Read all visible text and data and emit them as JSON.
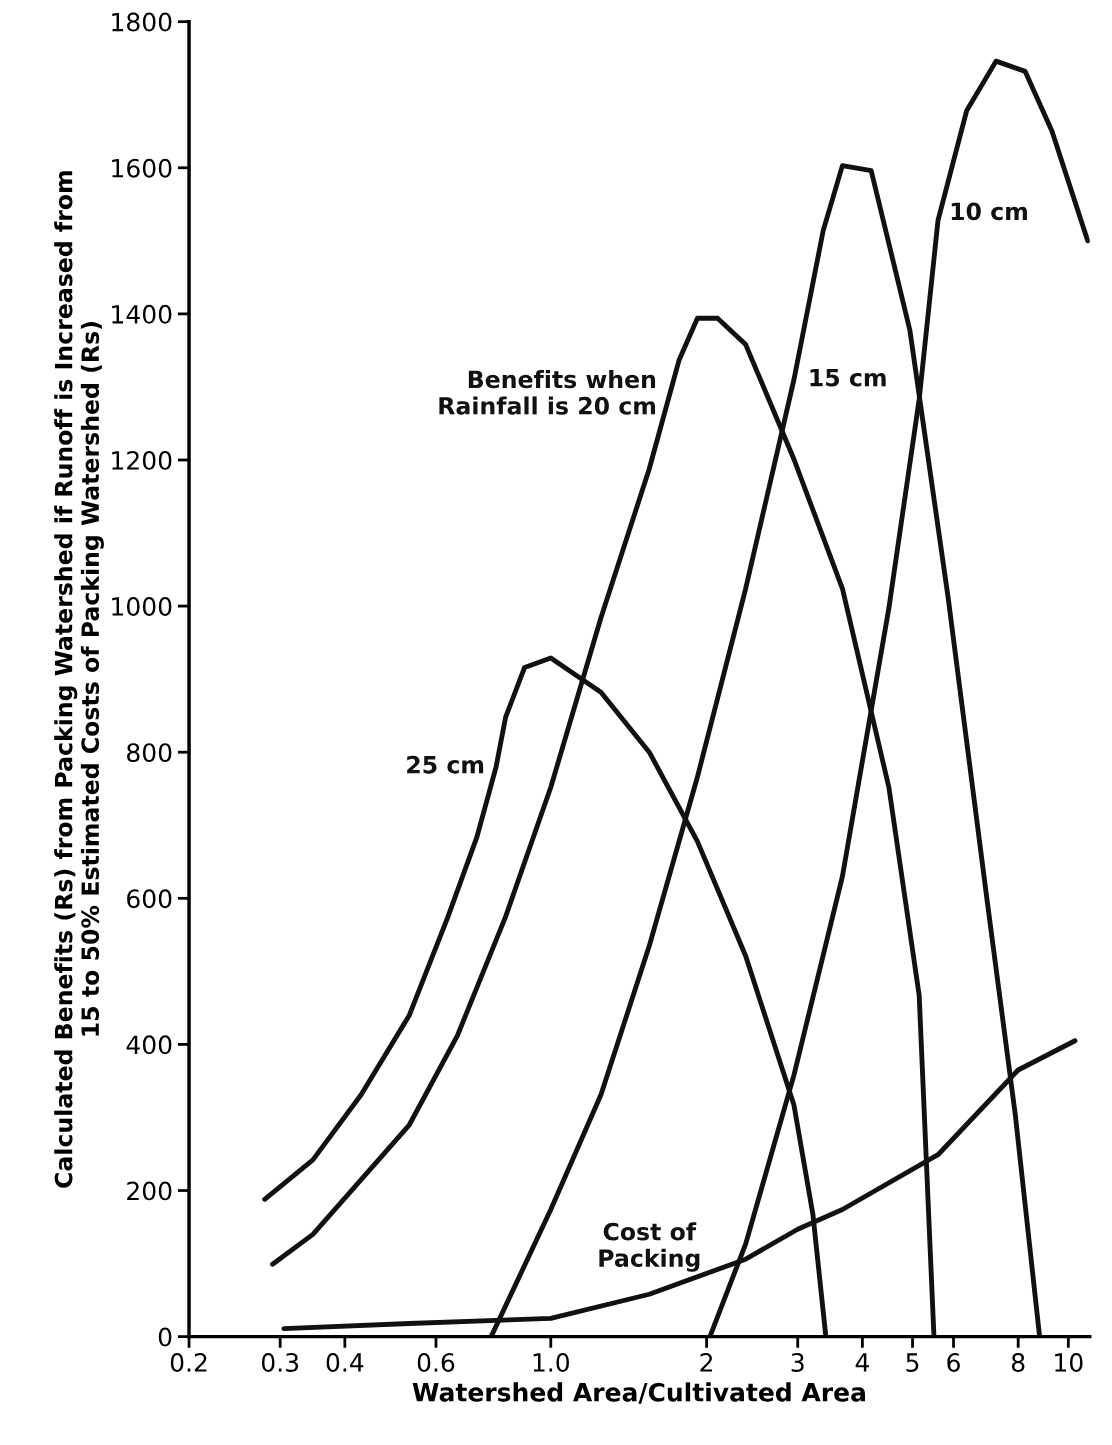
{
  "chart_data": {
    "type": "line",
    "xlabel": "Watershed Area/Cultivated Area",
    "ylabel": "Calculated Benefits (Rs) from Packing Watershed if Runoff is Increased from\n15 to 50% Estimated Costs of Packing Watershed (Rs)",
    "log": "x",
    "xlim": [
      0.2,
      11
    ],
    "xticks": [
      0.2,
      0.3,
      0.4,
      0.6,
      {
        "value": 1,
        "label": "1.0"
      },
      2,
      3,
      4,
      5,
      6,
      8,
      10
    ],
    "ylim": [
      0,
      1800
    ],
    "yticks": [
      0,
      200,
      400,
      600,
      800,
      1000,
      1200,
      1400,
      1600,
      1800
    ],
    "grid": false,
    "marker": "none",
    "line_style": "solid",
    "series": [
      {
        "name": "25 cm",
        "color": "#111111",
        "x": [
          0.28,
          0.347,
          0.43,
          0.533,
          0.633,
          0.72,
          0.784,
          0.818,
          0.89,
          1.0,
          1.25,
          1.55,
          1.92,
          2.38,
          2.95,
          3.21,
          3.4
        ],
        "values": [
          188,
          242,
          331,
          440,
          575,
          684,
          780,
          848,
          916,
          929,
          882,
          800,
          678,
          521,
          317,
          167,
          0
        ]
      },
      {
        "name": "Benefits when\nRainfall is 20 cm",
        "color": "#111111",
        "x": [
          0.29,
          0.347,
          0.533,
          0.66,
          0.818,
          1.0,
          1.25,
          1.55,
          1.77,
          1.92,
          2.1,
          2.38,
          2.95,
          3.66,
          4.5,
          5.15,
          5.5
        ],
        "values": [
          99,
          140,
          290,
          412,
          575,
          752,
          984,
          1188,
          1337,
          1394,
          1394,
          1358,
          1201,
          1024,
          752,
          467,
          0
        ]
      },
      {
        "name": "15 cm",
        "color": "#111111",
        "x": [
          0.767,
          1.0,
          1.25,
          1.55,
          1.92,
          2.38,
          2.95,
          3.36,
          3.66,
          4.16,
          4.94,
          5.86,
          6.95,
          7.9,
          8.8
        ],
        "values": [
          0,
          174,
          331,
          535,
          766,
          1024,
          1310,
          1514,
          1603,
          1596,
          1378,
          1011,
          603,
          303,
          0
        ]
      },
      {
        "name": "10 cm",
        "color": "#111111",
        "x": [
          2.03,
          2.38,
          2.95,
          3.66,
          4.5,
          5.15,
          5.6,
          6.36,
          7.25,
          8.25,
          9.3,
          10.9
        ],
        "values": [
          0,
          127,
          358,
          630,
          997,
          1283,
          1528,
          1678,
          1746,
          1732,
          1650,
          1500
        ]
      },
      {
        "name": "Cost of\nPacking",
        "color": "#111111",
        "x": [
          0.305,
          0.533,
          1.0,
          1.55,
          2.38,
          3.0,
          3.66,
          5.6,
          8.0,
          10.3
        ],
        "values": [
          11,
          18,
          25,
          58,
          106,
          147,
          174,
          249,
          365,
          405
        ]
      }
    ]
  }
}
